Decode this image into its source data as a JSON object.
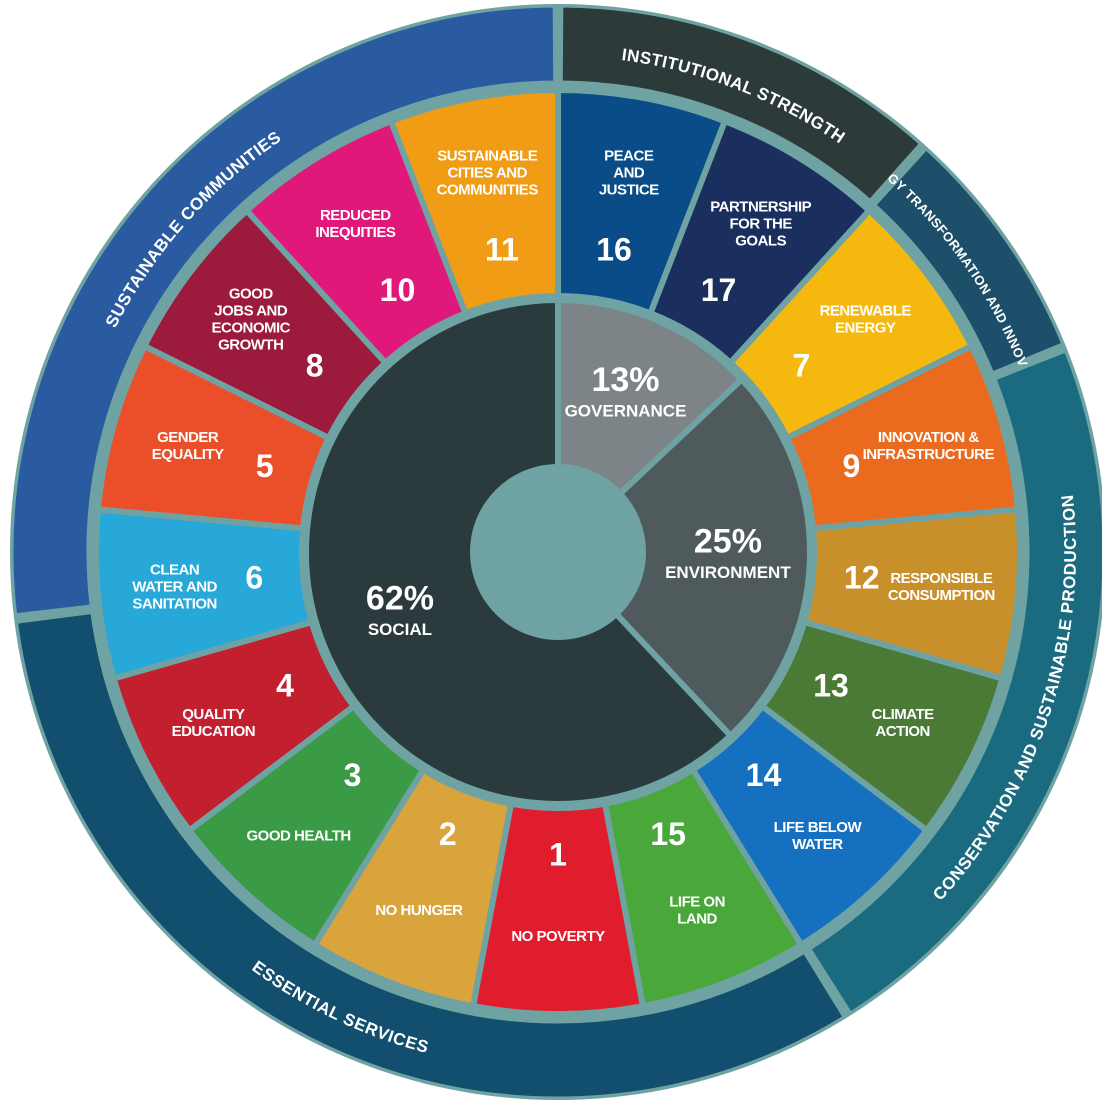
{
  "chart_data": {
    "type": "pie",
    "categories": [
      "GOVERNANCE",
      "ENVIRONMENT",
      "SOCIAL"
    ],
    "values": [
      13,
      25,
      62
    ],
    "value_labels": [
      "13%",
      "25%",
      "62%"
    ],
    "colors": [
      "#7d8488",
      "#4f5a5c",
      "#2b3a3c"
    ]
  },
  "goals": [
    {
      "number": "16",
      "label": [
        "PEACE",
        "AND",
        "JUSTICE"
      ],
      "color": "#0a4c87"
    },
    {
      "number": "17",
      "label": [
        "PARTNERSHIP",
        "FOR THE",
        "GOALS"
      ],
      "color": "#1b2f5e"
    },
    {
      "number": "7",
      "label": [
        "RENEWABLE",
        "ENERGY"
      ],
      "color": "#f5b80f"
    },
    {
      "number": "9",
      "label": [
        "INNOVATION &",
        "INFRASTRUCTURE"
      ],
      "color": "#ea6a1e"
    },
    {
      "number": "12",
      "label": [
        "RESPONSIBLE",
        "CONSUMPTION"
      ],
      "color": "#c8902a"
    },
    {
      "number": "13",
      "label": [
        "CLIMATE",
        "ACTION"
      ],
      "color": "#4a7a35"
    },
    {
      "number": "14",
      "label": [
        "LIFE BELOW",
        "WATER"
      ],
      "color": "#1570c0"
    },
    {
      "number": "15",
      "label": [
        "LIFE ON",
        "LAND"
      ],
      "color": "#4aa83a"
    },
    {
      "number": "1",
      "label": [
        "NO POVERTY"
      ],
      "color": "#e01d2c"
    },
    {
      "number": "2",
      "label": [
        "NO HUNGER"
      ],
      "color": "#d9a43c"
    },
    {
      "number": "3",
      "label": [
        "GOOD HEALTH"
      ],
      "color": "#3a9a45"
    },
    {
      "number": "4",
      "label": [
        "QUALITY",
        "EDUCATION"
      ],
      "color": "#c3202f"
    },
    {
      "number": "6",
      "label": [
        "CLEAN",
        "WATER AND",
        "SANITATION"
      ],
      "color": "#27a8d8"
    },
    {
      "number": "5",
      "label": [
        "GENDER",
        "EQUALITY"
      ],
      "color": "#ea4f2a"
    },
    {
      "number": "8",
      "label": [
        "GOOD",
        "JOBS AND",
        "ECONOMIC",
        "GROWTH"
      ],
      "color": "#9c1a3c"
    },
    {
      "number": "10",
      "label": [
        "REDUCED",
        "INEQUITIES"
      ],
      "color": "#e0187a"
    },
    {
      "number": "11",
      "label": [
        "SUSTAINABLE",
        "CITIES AND",
        "COMMUNITIES"
      ],
      "color": "#f09d15"
    }
  ],
  "themes": [
    {
      "label": "INSTITUTIONAL STRENGTH",
      "color": "#2d3a3a"
    },
    {
      "label": "ENERGY TRANSFORMATION AND INNOVATION",
      "color": "#1d4f6a"
    },
    {
      "label": "CONSERVATION AND SUSTAINABLE PRODUCTION",
      "color": "#1a6a80"
    },
    {
      "label": "ESSENTIAL SERVICES",
      "color": "#124e6e"
    },
    {
      "label": "SUSTAINABLE COMMUNITIES",
      "color": "#2a5aa0"
    }
  ]
}
